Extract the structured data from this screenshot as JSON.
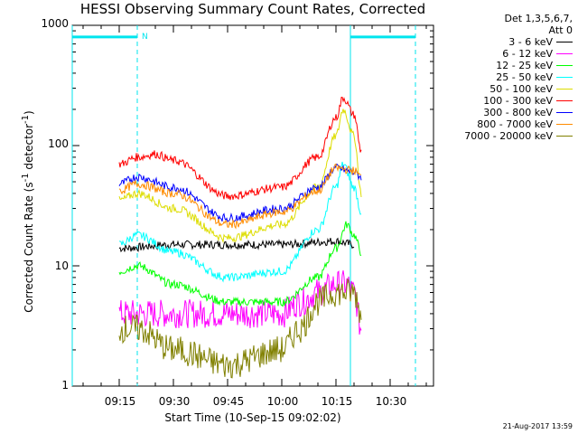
{
  "chart_data": {
    "type": "line",
    "title": "HESSI Observing Summary Count Rates, Corrected",
    "xlabel": "Start Time (10-Sep-15 09:02:02)",
    "ylabel_parts": [
      "Corrected Count Rate (s",
      "-1",
      " detector",
      "-1",
      ")"
    ],
    "y_scale": "log",
    "ylim": [
      1,
      1000
    ],
    "xlim": [
      "09:02",
      "10:42"
    ],
    "y_ticks": [
      "1",
      "10",
      "100",
      "1000"
    ],
    "x_ticks": [
      "09:15",
      "09:30",
      "09:45",
      "10:00",
      "10:15",
      "10:30"
    ],
    "x_tick_minutes": [
      15,
      30,
      45,
      60,
      75,
      90
    ],
    "legend_header": [
      "Det 1,3,5,6,7,",
      "Att 0"
    ],
    "series": [
      {
        "name": "3 - 6 keV",
        "color": "#000000",
        "x": [
          "09:15",
          "09:30",
          "09:45",
          "10:00",
          "10:15",
          "10:20"
        ],
        "y": [
          14,
          15,
          15,
          15,
          16,
          15
        ]
      },
      {
        "name": "6 - 12 keV",
        "color": "#ff00ff",
        "x": [
          "09:15",
          "09:20",
          "09:30",
          "09:45",
          "10:00",
          "10:05",
          "10:10",
          "10:15",
          "10:18",
          "10:20",
          "10:22"
        ],
        "y": [
          4,
          4,
          4,
          4,
          4,
          5,
          6,
          7,
          7,
          6,
          3
        ]
      },
      {
        "name": "12 - 25 keV",
        "color": "#00ff00",
        "x": [
          "09:15",
          "09:20",
          "09:30",
          "09:45",
          "10:00",
          "10:10",
          "10:15",
          "10:18",
          "10:20",
          "10:22"
        ],
        "y": [
          9,
          10,
          7,
          5,
          5,
          8,
          14,
          22,
          18,
          13
        ]
      },
      {
        "name": "25 - 50 keV",
        "color": "#00ffff",
        "x": [
          "09:15",
          "09:20",
          "09:30",
          "09:45",
          "10:00",
          "10:10",
          "10:15",
          "10:17",
          "10:20",
          "10:22"
        ],
        "y": [
          15,
          18,
          13,
          8,
          9,
          20,
          45,
          70,
          45,
          28
        ]
      },
      {
        "name": "50 - 100 keV",
        "color": "#dddd00",
        "x": [
          "09:15",
          "09:20",
          "09:30",
          "09:45",
          "10:00",
          "10:10",
          "10:15",
          "10:17",
          "10:20",
          "10:22"
        ],
        "y": [
          35,
          40,
          30,
          17,
          22,
          45,
          120,
          200,
          120,
          40
        ]
      },
      {
        "name": "100 - 300 keV",
        "color": "#ff0000",
        "x": [
          "09:15",
          "09:20",
          "09:25",
          "09:30",
          "09:45",
          "10:00",
          "10:10",
          "10:15",
          "10:17",
          "10:20",
          "10:22"
        ],
        "y": [
          70,
          80,
          85,
          75,
          38,
          45,
          80,
          170,
          250,
          180,
          90
        ]
      },
      {
        "name": "300 - 800 keV",
        "color": "#0000ff",
        "x": [
          "09:15",
          "09:20",
          "09:30",
          "09:45",
          "10:00",
          "10:10",
          "10:15",
          "10:20",
          "10:22"
        ],
        "y": [
          48,
          55,
          45,
          25,
          30,
          45,
          65,
          60,
          55
        ]
      },
      {
        "name": "800 - 7000 keV",
        "color": "#ff8c00",
        "x": [
          "09:15",
          "09:20",
          "09:30",
          "09:45",
          "10:00",
          "10:10",
          "10:15",
          "10:20",
          "10:22"
        ],
        "y": [
          42,
          48,
          40,
          22,
          28,
          42,
          65,
          62,
          55
        ]
      },
      {
        "name": "7000 - 20000 keV",
        "color": "#808000",
        "x": [
          "09:15",
          "09:20",
          "09:30",
          "09:45",
          "10:00",
          "10:05",
          "10:10",
          "10:15",
          "10:20",
          "10:22"
        ],
        "y": [
          3,
          3,
          2,
          1.5,
          2,
          3,
          5,
          6,
          6,
          4
        ]
      }
    ],
    "annotations": {
      "bars": [
        {
          "x_start": "09:02",
          "x_end": "09:20",
          "y": 800
        },
        {
          "x_start": "10:19",
          "x_end": "10:37",
          "y": 800
        }
      ],
      "bar_label": "N",
      "solid_lines_x": [
        "09:02",
        "10:19"
      ],
      "dashed_lines_x": [
        "09:20",
        "10:37"
      ],
      "color": "#00e5ee"
    }
  },
  "timestamp": "21-Aug-2017 13:59"
}
